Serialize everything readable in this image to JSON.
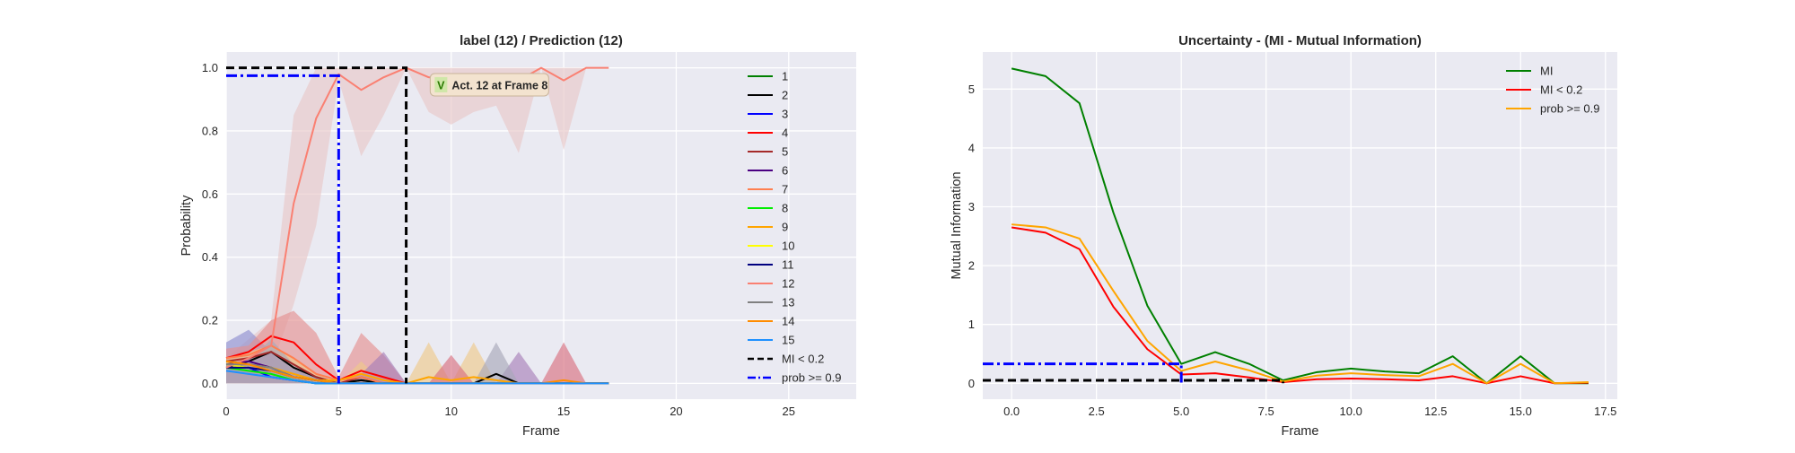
{
  "chart_data": [
    {
      "type": "line",
      "title": "label (12) / Prediction (12)",
      "xlabel": "Frame",
      "ylabel": "Probability",
      "xlim": [
        0,
        28
      ],
      "ylim": [
        -0.05,
        1.05
      ],
      "xticks": [
        "0",
        "5",
        "10",
        "15",
        "20",
        "25"
      ],
      "yticks": [
        "0.0",
        "0.2",
        "0.4",
        "0.6",
        "0.8",
        "1.0"
      ],
      "grid": true,
      "legend_position": "top-right",
      "x": [
        0,
        1,
        2,
        3,
        4,
        5,
        6,
        7,
        8,
        9,
        10,
        11,
        12,
        13,
        14,
        15,
        16,
        17
      ],
      "series": [
        {
          "name": "1",
          "color": "#008000",
          "values": [
            0.07,
            0.06,
            0.05,
            0.02,
            0.01,
            0.0,
            0.01,
            0.0,
            0.0,
            0.0,
            0.0,
            0.0,
            0.0,
            0.0,
            0.0,
            0.0,
            0.0,
            0.0
          ]
        },
        {
          "name": "2",
          "color": "#000000",
          "values": [
            0.05,
            0.07,
            0.1,
            0.05,
            0.02,
            0.0,
            0.01,
            0.0,
            0.0,
            0.0,
            0.0,
            0.0,
            0.03,
            0.0,
            0.0,
            0.0,
            0.0,
            0.0
          ]
        },
        {
          "name": "3",
          "color": "#0000ff",
          "values": [
            0.06,
            0.05,
            0.02,
            0.01,
            0.0,
            0.0,
            0.0,
            0.0,
            0.0,
            0.0,
            0.0,
            0.0,
            0.0,
            0.0,
            0.0,
            0.0,
            0.0,
            0.0
          ]
        },
        {
          "name": "4",
          "color": "#ff0000",
          "values": [
            0.08,
            0.1,
            0.15,
            0.13,
            0.06,
            0.01,
            0.04,
            0.02,
            0.0,
            0.0,
            0.0,
            0.0,
            0.0,
            0.0,
            0.0,
            0.0,
            0.0,
            0.0
          ]
        },
        {
          "name": "5",
          "color": "#a52a2a",
          "values": [
            0.07,
            0.08,
            0.1,
            0.06,
            0.02,
            0.0,
            0.02,
            0.0,
            0.0,
            0.0,
            0.0,
            0.0,
            0.0,
            0.0,
            0.0,
            0.0,
            0.0,
            0.0
          ]
        },
        {
          "name": "6",
          "color": "#4b0082",
          "values": [
            0.06,
            0.07,
            0.05,
            0.02,
            0.01,
            0.0,
            0.0,
            0.0,
            0.0,
            0.0,
            0.0,
            0.0,
            0.0,
            0.0,
            0.0,
            0.0,
            0.0,
            0.0
          ]
        },
        {
          "name": "7",
          "color": "#ff7f50",
          "values": [
            0.08,
            0.09,
            0.12,
            0.08,
            0.03,
            0.01,
            0.02,
            0.0,
            0.0,
            0.0,
            0.0,
            0.0,
            0.0,
            0.0,
            0.0,
            0.0,
            0.0,
            0.0
          ]
        },
        {
          "name": "8",
          "color": "#00ee00",
          "values": [
            0.05,
            0.04,
            0.03,
            0.01,
            0.0,
            0.0,
            0.0,
            0.0,
            0.0,
            0.0,
            0.0,
            0.0,
            0.0,
            0.0,
            0.0,
            0.0,
            0.0,
            0.0
          ]
        },
        {
          "name": "9",
          "color": "#ffa500",
          "values": [
            0.06,
            0.06,
            0.05,
            0.03,
            0.01,
            0.01,
            0.03,
            0.01,
            0.0,
            0.02,
            0.01,
            0.02,
            0.01,
            0.0,
            0.0,
            0.0,
            0.0,
            0.0
          ]
        },
        {
          "name": "10",
          "color": "#ffff00",
          "values": [
            0.06,
            0.05,
            0.04,
            0.02,
            0.01,
            0.0,
            0.0,
            0.0,
            0.0,
            0.0,
            0.0,
            0.0,
            0.0,
            0.0,
            0.0,
            0.0,
            0.0,
            0.0
          ]
        },
        {
          "name": "11",
          "color": "#000080",
          "values": [
            0.05,
            0.05,
            0.04,
            0.02,
            0.01,
            0.0,
            0.0,
            0.0,
            0.0,
            0.0,
            0.0,
            0.0,
            0.0,
            0.0,
            0.0,
            0.0,
            0.0,
            0.0
          ]
        },
        {
          "name": "12",
          "color": "#fa8072",
          "values": [
            0.05,
            0.08,
            0.12,
            0.57,
            0.84,
            0.98,
            0.93,
            0.97,
            1.0,
            0.97,
            0.96,
            0.97,
            0.97,
            0.96,
            1.0,
            0.96,
            1.0,
            1.0
          ]
        },
        {
          "name": "13",
          "color": "#808080",
          "values": [
            0.06,
            0.06,
            0.05,
            0.02,
            0.01,
            0.0,
            0.0,
            0.0,
            0.0,
            0.0,
            0.0,
            0.0,
            0.0,
            0.0,
            0.0,
            0.0,
            0.0,
            0.0
          ]
        },
        {
          "name": "14",
          "color": "#ff8c00",
          "values": [
            0.07,
            0.06,
            0.04,
            0.02,
            0.01,
            0.0,
            0.0,
            0.0,
            0.0,
            0.0,
            0.0,
            0.0,
            0.0,
            0.0,
            0.0,
            0.01,
            0.0,
            0.0
          ]
        },
        {
          "name": "15",
          "color": "#1e90ff",
          "values": [
            0.04,
            0.03,
            0.02,
            0.01,
            0.0,
            0.0,
            0.0,
            0.0,
            0.0,
            0.0,
            0.0,
            0.0,
            0.0,
            0.0,
            0.0,
            0.0,
            0.0,
            0.0
          ]
        }
      ],
      "bands": [
        {
          "color": "#e8c8c8",
          "lower": [
            0.03,
            0.04,
            0.05,
            0.25,
            0.5,
            0.96,
            0.72,
            0.85,
            1.0,
            0.86,
            0.82,
            0.86,
            0.88,
            0.73,
            1.0,
            0.74,
            1.0,
            1.0
          ],
          "upper": [
            0.08,
            0.14,
            0.2,
            0.85,
            1.0,
            1.0,
            1.0,
            1.0,
            1.0,
            1.0,
            1.0,
            1.0,
            1.0,
            1.0,
            1.0,
            1.0,
            1.0,
            1.0
          ]
        },
        {
          "color": "#8f8fcf",
          "lower": [
            0.01,
            0.0,
            0.0,
            0.0,
            0.0,
            0.0,
            0.0,
            0.0,
            0.0,
            0.0,
            0.0,
            0.0,
            0.0,
            0.0,
            0.0,
            0.0,
            0.0,
            0.0
          ],
          "upper": [
            0.13,
            0.17,
            0.1,
            0.05,
            0.02,
            0.0,
            0.0,
            0.0,
            0.0,
            0.0,
            0.0,
            0.0,
            0.0,
            0.0,
            0.0,
            0.0,
            0.0,
            0.0
          ]
        },
        {
          "color": "#e59090",
          "lower": [
            0.0,
            0.0,
            0.0,
            0.0,
            0.0,
            0.0,
            0.0,
            0.0,
            0.0,
            0.0,
            0.0,
            0.0,
            0.0,
            0.0,
            0.0,
            0.0,
            0.0,
            0.0
          ],
          "upper": [
            0.11,
            0.12,
            0.2,
            0.23,
            0.16,
            0.02,
            0.16,
            0.09,
            0.0,
            0.0,
            0.0,
            0.0,
            0.0,
            0.0,
            0.0,
            0.0,
            0.0,
            0.0
          ]
        },
        {
          "color": "#eec98a",
          "lower": [
            0.0,
            0.0,
            0.0,
            0.0,
            0.0,
            0.0,
            0.0,
            0.0,
            0.0,
            0.0,
            0.0,
            0.0,
            0.0,
            0.0,
            0.0,
            0.0,
            0.0,
            0.0
          ],
          "upper": [
            0.08,
            0.1,
            0.12,
            0.08,
            0.03,
            0.0,
            0.07,
            0.0,
            0.0,
            0.13,
            0.0,
            0.13,
            0.0,
            0.0,
            0.0,
            0.0,
            0.0,
            0.0
          ]
        },
        {
          "color": "#a880b8",
          "lower": [
            0.0,
            0.0,
            0.0,
            0.0,
            0.0,
            0.0,
            0.0,
            0.0,
            0.0,
            0.0,
            0.0,
            0.0,
            0.0,
            0.0,
            0.0,
            0.0,
            0.0,
            0.0
          ],
          "upper": [
            0.06,
            0.08,
            0.1,
            0.05,
            0.02,
            0.0,
            0.03,
            0.1,
            0.0,
            0.0,
            0.0,
            0.0,
            0.0,
            0.1,
            0.0,
            0.0,
            0.0,
            0.0
          ]
        },
        {
          "color": "#a8a8b8",
          "lower": [
            0.0,
            0.0,
            0.0,
            0.0,
            0.0,
            0.0,
            0.0,
            0.0,
            0.0,
            0.0,
            0.0,
            0.0,
            0.0,
            0.0,
            0.0,
            0.0,
            0.0,
            0.0
          ],
          "upper": [
            0.05,
            0.07,
            0.14,
            0.06,
            0.02,
            0.0,
            0.0,
            0.0,
            0.0,
            0.0,
            0.0,
            0.0,
            0.13,
            0.0,
            0.0,
            0.0,
            0.0,
            0.0
          ]
        },
        {
          "color": "#d87080",
          "lower": [
            0.0,
            0.0,
            0.0,
            0.0,
            0.0,
            0.0,
            0.0,
            0.0,
            0.0,
            0.0,
            0.0,
            0.0,
            0.0,
            0.0,
            0.0,
            0.0,
            0.0,
            0.0
          ],
          "upper": [
            0.0,
            0.0,
            0.0,
            0.0,
            0.0,
            0.0,
            0.0,
            0.0,
            0.0,
            0.0,
            0.09,
            0.0,
            0.0,
            0.0,
            0.0,
            0.13,
            0.0,
            0.0
          ]
        }
      ],
      "thresholds": [
        {
          "name": "MI < 0.2",
          "color": "#000000",
          "dash": "dashed",
          "frame": 8,
          "level": 1.0
        },
        {
          "name": "prob >= 0.9",
          "color": "#0000ff",
          "dash": "dashdot",
          "frame": 5,
          "level": 0.975
        }
      ],
      "annotation": {
        "mark": "V",
        "text": "Act. 12 at Frame 8",
        "x": 11.7,
        "y": 0.945
      }
    },
    {
      "type": "line",
      "title": "Uncertainty - (MI - Mutual Information)",
      "xlabel": "Frame",
      "ylabel": "Mutual Information",
      "xlim": [
        -0.85,
        17.85
      ],
      "ylim": [
        -0.27,
        5.63
      ],
      "xticks": [
        "0.0",
        "2.5",
        "5.0",
        "7.5",
        "10.0",
        "12.5",
        "15.0",
        "17.5"
      ],
      "yticks": [
        "0",
        "1",
        "2",
        "3",
        "4",
        "5"
      ],
      "grid": true,
      "legend_position": "top-right",
      "x": [
        0,
        1,
        2,
        3,
        4,
        5,
        6,
        7,
        8,
        9,
        10,
        11,
        12,
        13,
        14,
        15,
        16,
        17
      ],
      "series": [
        {
          "name": "MI",
          "color": "#008000",
          "values": [
            5.35,
            5.22,
            4.76,
            2.9,
            1.32,
            0.33,
            0.53,
            0.33,
            0.05,
            0.19,
            0.25,
            0.2,
            0.17,
            0.46,
            0.0,
            0.46,
            0.0,
            0.0
          ]
        },
        {
          "name": "MI < 0.2",
          "color": "#ff0000",
          "values": [
            2.65,
            2.56,
            2.28,
            1.3,
            0.58,
            0.15,
            0.17,
            0.1,
            0.02,
            0.07,
            0.08,
            0.07,
            0.05,
            0.12,
            0.0,
            0.12,
            0.0,
            0.01
          ]
        },
        {
          "name": "prob >= 0.9",
          "color": "#ffa500",
          "values": [
            2.7,
            2.65,
            2.46,
            1.57,
            0.72,
            0.21,
            0.37,
            0.22,
            0.03,
            0.13,
            0.17,
            0.14,
            0.12,
            0.33,
            0.0,
            0.33,
            0.0,
            0.02
          ]
        }
      ],
      "thresholds": [
        {
          "color": "#000000",
          "dash": "dashed",
          "frame": 8,
          "level": 0.05
        },
        {
          "color": "#0000ff",
          "dash": "dashdot",
          "frame": 5,
          "level": 0.33
        }
      ]
    }
  ]
}
